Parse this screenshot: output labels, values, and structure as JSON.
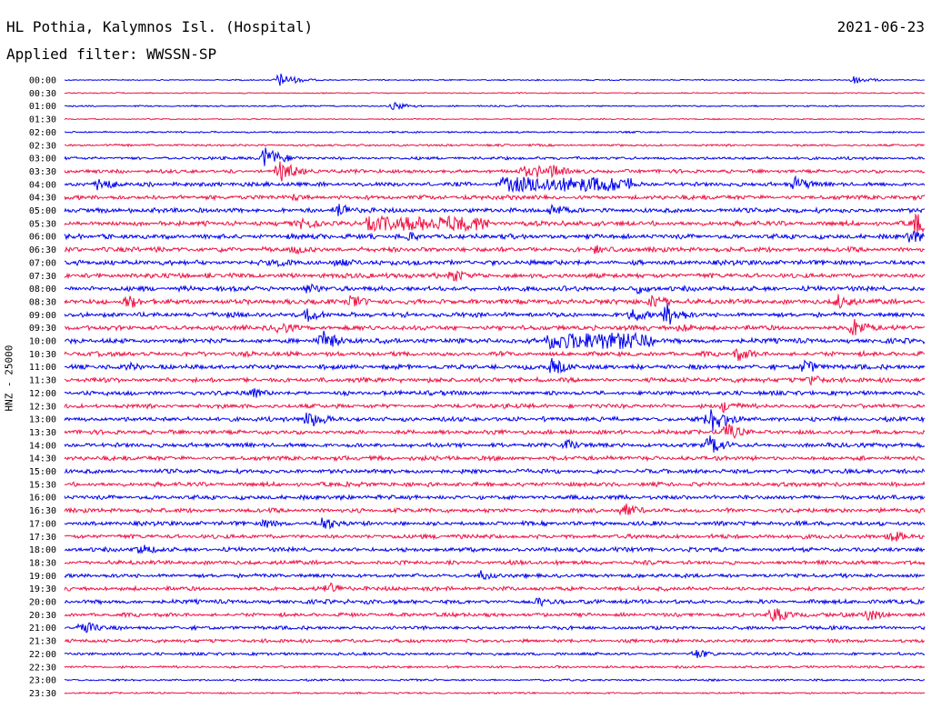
{
  "header": {
    "station": "HL Pothia, Kalymnos Isl. (Hospital)",
    "date": "2021-06-23",
    "filter": "Applied filter: WWSSN-SP",
    "channel_label": "HNZ - 25000"
  },
  "colors": {
    "even_trace": "#0000ee",
    "odd_trace": "#ee1144",
    "text": "#000000"
  },
  "chart_data": {
    "type": "line",
    "title": "HL Pothia, Kalymnos Isl. (Hospital)",
    "ylabel": "HNZ - 25000",
    "rows": [
      "00:00",
      "00:30",
      "01:00",
      "01:30",
      "02:00",
      "02:30",
      "03:00",
      "03:30",
      "04:00",
      "04:30",
      "05:00",
      "05:30",
      "06:00",
      "06:30",
      "07:00",
      "07:30",
      "08:00",
      "08:30",
      "09:00",
      "09:30",
      "10:00",
      "10:30",
      "11:00",
      "11:30",
      "12:00",
      "12:30",
      "13:00",
      "13:30",
      "14:00",
      "14:30",
      "15:00",
      "15:30",
      "16:00",
      "16:30",
      "17:00",
      "17:30",
      "18:00",
      "18:30",
      "19:00",
      "19:30",
      "20:00",
      "20:30",
      "21:00",
      "21:30",
      "22:00",
      "22:30",
      "23:00",
      "23:30"
    ],
    "noise_level": [
      0.5,
      0.5,
      0.6,
      0.5,
      0.7,
      0.9,
      1.2,
      1.5,
      1.7,
      1.8,
      1.9,
      2.0,
      2.0,
      2.0,
      2.0,
      2.0,
      2.0,
      2.0,
      2.0,
      2.0,
      2.0,
      2.0,
      2.0,
      1.9,
      1.8,
      1.8,
      1.8,
      1.8,
      1.8,
      1.8,
      1.8,
      1.8,
      1.8,
      1.8,
      1.8,
      1.8,
      1.8,
      1.7,
      1.7,
      1.7,
      1.7,
      1.6,
      1.5,
      1.4,
      1.2,
      1.0,
      0.8,
      0.7
    ],
    "events": [
      {
        "row": 0,
        "minute": 7.5,
        "amp": 8
      },
      {
        "row": 0,
        "minute": 27.5,
        "amp": 5
      },
      {
        "row": 2,
        "minute": 11.5,
        "amp": 5
      },
      {
        "row": 6,
        "minute": 7,
        "amp": 14
      },
      {
        "row": 7,
        "minute": 7.5,
        "amp": 14
      },
      {
        "row": 7,
        "minute": 17,
        "amp": 8
      },
      {
        "row": 7,
        "minute": 16,
        "amp": 7
      },
      {
        "row": 7,
        "minute": 16.5,
        "amp": 7
      },
      {
        "row": 8,
        "minute": 1.2,
        "amp": 9
      },
      {
        "row": 8,
        "minute": 16,
        "amp": 9
      },
      {
        "row": 8,
        "minute": 17.7,
        "amp": 7
      },
      {
        "row": 8,
        "minute": 25.5,
        "amp": 9
      },
      {
        "row": 9,
        "minute": 8,
        "amp": 5
      },
      {
        "row": 10,
        "minute": 9.5,
        "amp": 10
      },
      {
        "row": 10,
        "minute": 17,
        "amp": 8
      },
      {
        "row": 11,
        "minute": 8.3,
        "amp": 8
      },
      {
        "row": 11,
        "minute": 29.7,
        "amp": 14
      },
      {
        "row": 12,
        "minute": 12,
        "amp": 6
      },
      {
        "row": 12,
        "minute": 29.5,
        "amp": 10
      },
      {
        "row": 13,
        "minute": 8,
        "amp": 6
      },
      {
        "row": 13,
        "minute": 18.5,
        "amp": 6
      },
      {
        "row": 14,
        "minute": 7.5,
        "amp": 6
      },
      {
        "row": 14,
        "minute": 9.5,
        "amp": 8
      },
      {
        "row": 15,
        "minute": 13.5,
        "amp": 9
      },
      {
        "row": 16,
        "minute": 8.5,
        "amp": 7
      },
      {
        "row": 16,
        "minute": 20,
        "amp": 6
      },
      {
        "row": 17,
        "minute": 2.2,
        "amp": 9
      },
      {
        "row": 17,
        "minute": 10,
        "amp": 9
      },
      {
        "row": 17,
        "minute": 20.5,
        "amp": 10
      },
      {
        "row": 17,
        "minute": 27,
        "amp": 9
      },
      {
        "row": 18,
        "minute": 8.5,
        "amp": 9
      },
      {
        "row": 18,
        "minute": 21,
        "amp": 14
      },
      {
        "row": 18,
        "minute": 19.8,
        "amp": 9
      },
      {
        "row": 19,
        "minute": 7.5,
        "amp": 8
      },
      {
        "row": 19,
        "minute": 21.5,
        "amp": 7
      },
      {
        "row": 19,
        "minute": 27.5,
        "amp": 12
      },
      {
        "row": 20,
        "minute": 9,
        "amp": 12
      },
      {
        "row": 21,
        "minute": 23.5,
        "amp": 9
      },
      {
        "row": 22,
        "minute": 2.2,
        "amp": 6
      },
      {
        "row": 22,
        "minute": 17,
        "amp": 10
      },
      {
        "row": 22,
        "minute": 25.8,
        "amp": 9
      },
      {
        "row": 23,
        "minute": 26,
        "amp": 7
      },
      {
        "row": 24,
        "minute": 6.5,
        "amp": 7
      },
      {
        "row": 25,
        "minute": 23,
        "amp": 8
      },
      {
        "row": 26,
        "minute": 8.5,
        "amp": 12
      },
      {
        "row": 26,
        "minute": 22.5,
        "amp": 18
      },
      {
        "row": 27,
        "minute": 23,
        "amp": 12
      },
      {
        "row": 28,
        "minute": 22.5,
        "amp": 12
      },
      {
        "row": 28,
        "minute": 17.5,
        "amp": 7
      },
      {
        "row": 33,
        "minute": 19.5,
        "amp": 9
      },
      {
        "row": 34,
        "minute": 9,
        "amp": 9
      },
      {
        "row": 34,
        "minute": 7,
        "amp": 6
      },
      {
        "row": 35,
        "minute": 28.8,
        "amp": 8
      },
      {
        "row": 36,
        "minute": 2.6,
        "amp": 8
      },
      {
        "row": 38,
        "minute": 14.5,
        "amp": 6
      },
      {
        "row": 39,
        "minute": 9.2,
        "amp": 8
      },
      {
        "row": 40,
        "minute": 16.5,
        "amp": 6
      },
      {
        "row": 41,
        "minute": 24.7,
        "amp": 10
      },
      {
        "row": 41,
        "minute": 28,
        "amp": 8
      },
      {
        "row": 42,
        "minute": 0.6,
        "amp": 9
      },
      {
        "row": 44,
        "minute": 22,
        "amp": 6
      }
    ],
    "saturated_bursts": [
      {
        "row": 8,
        "start_minute": 15.2,
        "end_minute": 19.8,
        "amp": 8
      },
      {
        "row": 11,
        "start_minute": 10.5,
        "end_minute": 14.8,
        "amp": 8
      },
      {
        "row": 20,
        "start_minute": 16.7,
        "end_minute": 20.6,
        "amp": 9
      }
    ]
  }
}
